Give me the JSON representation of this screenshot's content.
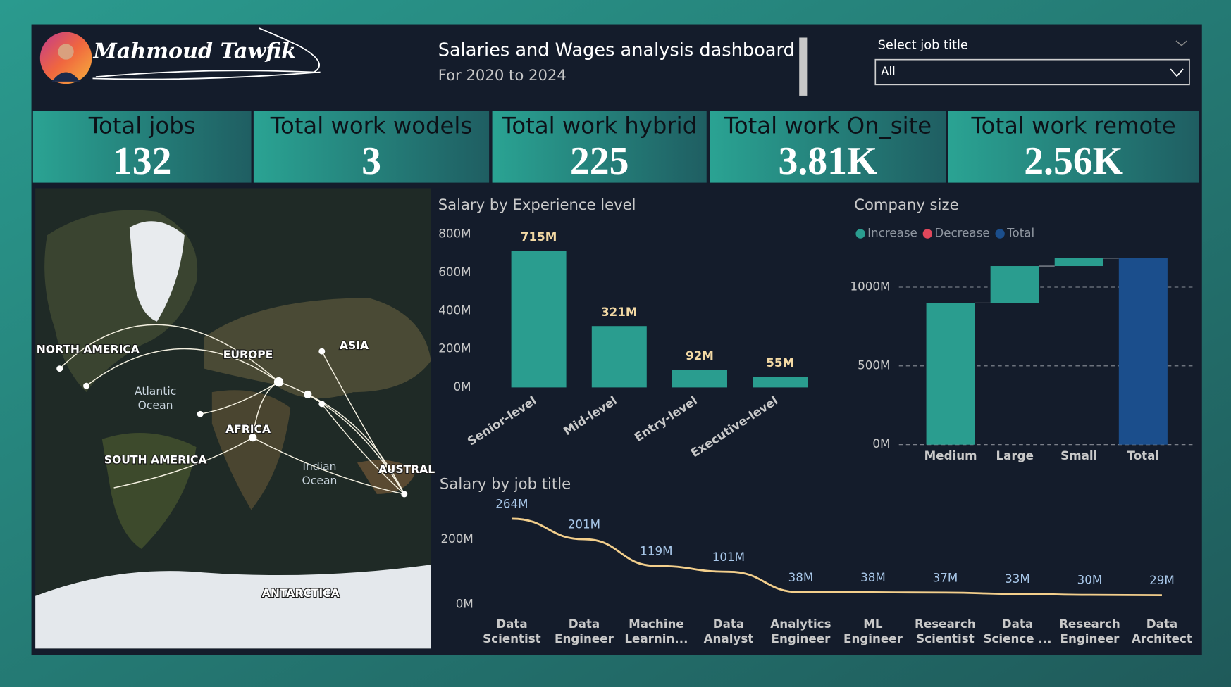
{
  "header": {
    "name": "Mahmoud Tawfik",
    "title": "Salaries and Wages analysis dashboard",
    "subtitle": "For 2020 to 2024",
    "filter_label": "Select job title",
    "filter_value": "All"
  },
  "kpis": [
    {
      "label": "Total jobs",
      "value": "132"
    },
    {
      "label": "Total work wodels",
      "value": "3"
    },
    {
      "label": "Total work hybrid",
      "value": "225"
    },
    {
      "label": "Total work On_site",
      "value": "3.81K"
    },
    {
      "label": "Total work remote",
      "value": "2.56K"
    }
  ],
  "map": {
    "labels": [
      "NORTH AMERICA",
      "EUROPE",
      "ASIA",
      "AFRICA",
      "SOUTH AMERICA",
      "AUSTRAL",
      "ANTARCTICA"
    ],
    "oceans": [
      "Atlantic Ocean",
      "Indian Ocean"
    ]
  },
  "chart_data": [
    {
      "type": "bar",
      "title": "Salary by Experience level",
      "categories": [
        "Senior-level",
        "Mid-level",
        "Entry-level",
        "Executive-level"
      ],
      "values": [
        715,
        321,
        92,
        55
      ],
      "value_labels": [
        "715M",
        "321M",
        "92M",
        "55M"
      ],
      "color": "#2a9d8f",
      "ylim": [
        0,
        800
      ],
      "yticks": [
        {
          "value": 0,
          "label": "0M"
        },
        {
          "value": 200,
          "label": "200M"
        },
        {
          "value": 400,
          "label": "400M"
        },
        {
          "value": 600,
          "label": "600M"
        },
        {
          "value": 800,
          "label": "800M"
        }
      ]
    },
    {
      "type": "waterfall",
      "title": "Company size",
      "legend": [
        {
          "name": "Increase",
          "color": "#2a9d8f"
        },
        {
          "name": "Decrease",
          "color": "#e0475b"
        },
        {
          "name": "Total",
          "color": "#1b4e8c"
        }
      ],
      "categories": [
        "Medium",
        "Large",
        "Small",
        "Total"
      ],
      "values": [
        900,
        234,
        50,
        1184
      ],
      "measures": [
        "increase",
        "increase",
        "increase",
        "total"
      ],
      "ylim": [
        0,
        1250
      ],
      "yticks": [
        {
          "value": 0,
          "label": "0M"
        },
        {
          "value": 500,
          "label": "500M"
        },
        {
          "value": 1000,
          "label": "1000M"
        }
      ],
      "grid": true
    },
    {
      "type": "line",
      "title": "Salary by job title",
      "categories": [
        "Data Scientist",
        "Data Engineer",
        "Machine Learnin...",
        "Data Analyst",
        "Analytics Engineer",
        "ML Engineer",
        "Research Scientist",
        "Data Science ...",
        "Research Engineer",
        "Data Architect"
      ],
      "values": [
        264,
        201,
        119,
        101,
        38,
        38,
        37,
        33,
        30,
        29
      ],
      "value_labels": [
        "264M",
        "201M",
        "119M",
        "101M",
        "38M",
        "38M",
        "37M",
        "33M",
        "30M",
        "29M"
      ],
      "color": "#f3cf8c",
      "ylim": [
        0,
        300
      ],
      "yticks": [
        {
          "value": 0,
          "label": "0M"
        },
        {
          "value": 200,
          "label": "200M"
        }
      ]
    }
  ]
}
